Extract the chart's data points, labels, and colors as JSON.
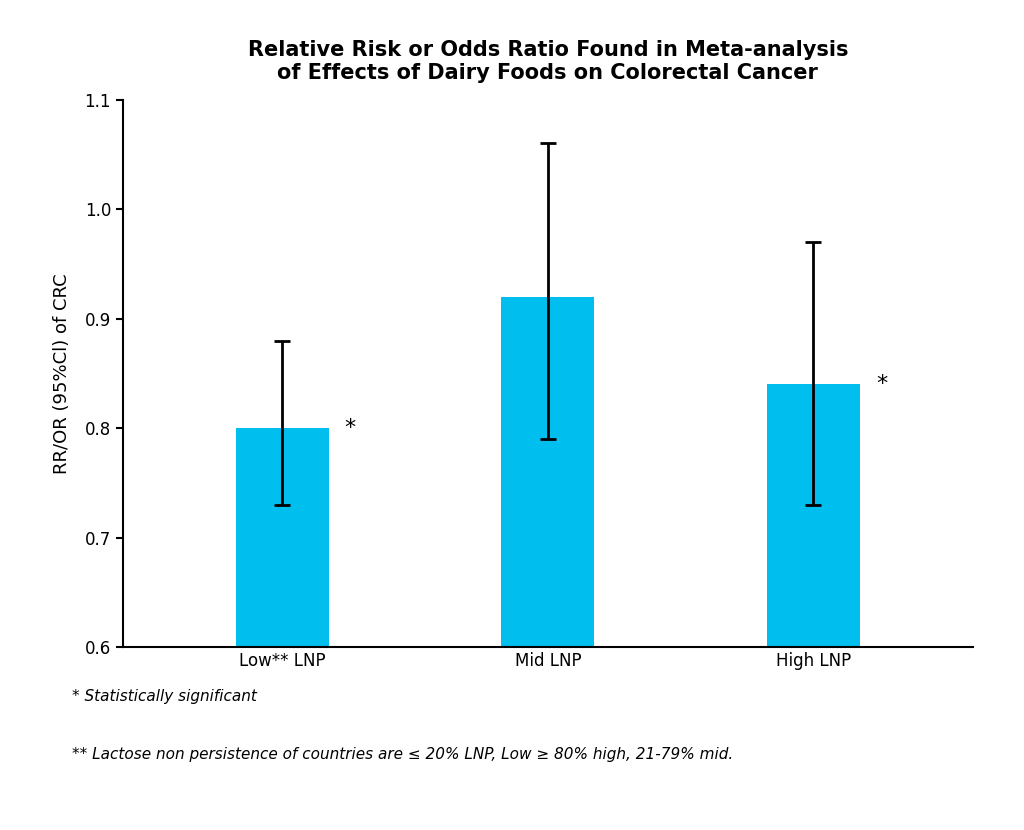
{
  "title_line1": "Relative Risk or Odds Ratio Found in Meta-analysis",
  "title_line2": "of Effects of Dairy Foods on Colorectal Cancer",
  "categories": [
    "Low** LNP",
    "Mid LNP",
    "High LNP"
  ],
  "values": [
    0.8,
    0.92,
    0.84
  ],
  "ci_low": [
    0.73,
    0.79,
    0.73
  ],
  "ci_high": [
    0.88,
    1.06,
    0.97
  ],
  "bar_color": "#00BFEE",
  "ylabel": "RR/OR (95%Cl) of CRC",
  "ylim": [
    0.6,
    1.1
  ],
  "yticks": [
    0.6,
    0.7,
    0.8,
    0.9,
    1.0,
    1.1
  ],
  "significant": [
    true,
    false,
    true
  ],
  "footnote1": "* Statistically significant",
  "footnote2": "** Lactose non persistence of countries are ≤ 20% LNP, Low ≥ 80% high, 21-79% mid.",
  "background_color": "#FFFFFF",
  "bar_width": 0.35,
  "errorbar_capsize": 6,
  "errorbar_linewidth": 2.0,
  "errorbar_color": "#000000",
  "title_fontsize": 15,
  "axis_fontsize": 13,
  "tick_fontsize": 12,
  "footnote_fontsize": 11,
  "star_fontsize": 16
}
